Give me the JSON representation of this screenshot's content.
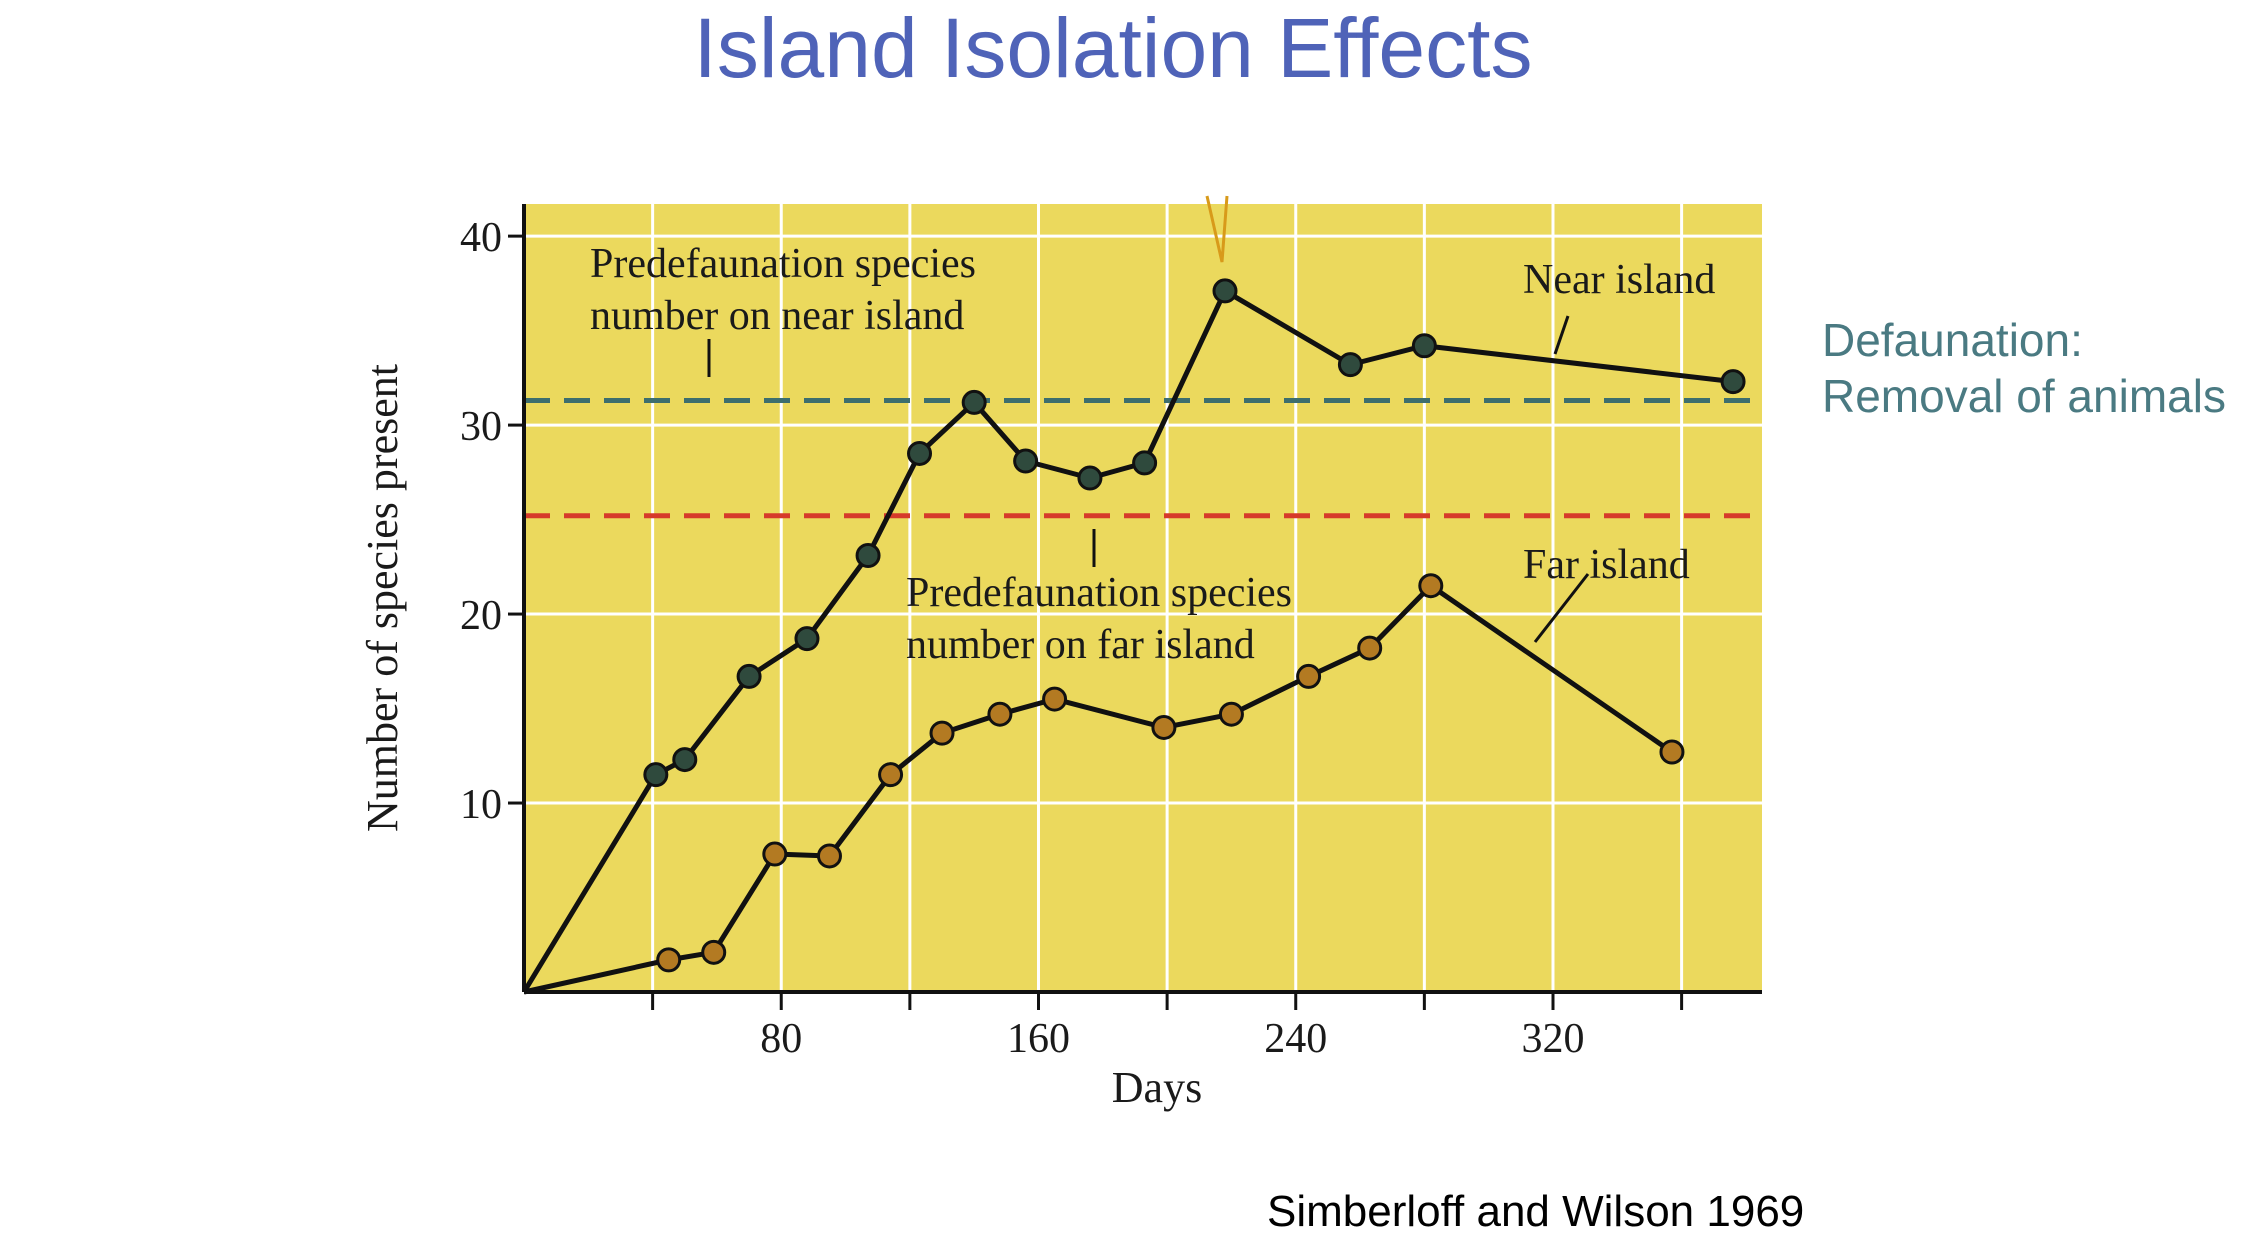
{
  "slide": {
    "title": "Island Isolation Effects",
    "side_note": [
      "Defaunation:",
      "Removal of animals"
    ],
    "citation": "Simberloff and Wilson 1969"
  },
  "colors": {
    "title": "#4f63b8",
    "plot_bg": "#ebd95d",
    "grid": "#ffffff",
    "near_marker": "#2f4a3d",
    "far_marker": "#b37a22",
    "near_threshold": "#3d6e6e",
    "far_threshold": "#d63a2a",
    "line": "#111111",
    "side_note": "#4a7a82",
    "pointer": "#d89a1a"
  },
  "chart_data": {
    "type": "line",
    "title": "",
    "xlabel": "Days",
    "ylabel": "Number of species present",
    "xlim": [
      0,
      385
    ],
    "ylim": [
      0,
      41.7
    ],
    "x_ticks": [
      80,
      160,
      240,
      320
    ],
    "x_minor_ticks": [
      40,
      120,
      200,
      280,
      360
    ],
    "y_ticks": [
      10,
      20,
      30,
      40
    ],
    "grid": true,
    "series": [
      {
        "name": "Near island",
        "x": [
          0,
          41,
          50,
          70,
          88,
          107,
          123,
          140,
          156,
          176,
          193,
          218,
          257,
          280,
          376
        ],
        "y": [
          0,
          11.5,
          12.3,
          16.7,
          18.7,
          23.1,
          28.5,
          31.2,
          28.1,
          27.2,
          28.0,
          37.1,
          33.2,
          34.2,
          32.3
        ]
      },
      {
        "name": "Far island",
        "x": [
          0,
          45,
          59,
          78,
          95,
          114,
          130,
          148,
          165,
          199,
          220,
          244,
          263,
          282,
          357
        ],
        "y": [
          0,
          1.7,
          2.1,
          7.3,
          7.2,
          11.5,
          13.7,
          14.7,
          15.5,
          14.0,
          14.7,
          16.7,
          18.2,
          21.5,
          12.7
        ]
      }
    ],
    "reference_lines": [
      {
        "name": "Predefaunation species number on near island",
        "y": 31.3
      },
      {
        "name": "Predefaunation species number on far island",
        "y": 25.2
      }
    ],
    "annotations": [
      {
        "lines": [
          "Predefaunation species",
          "number on near island"
        ]
      },
      {
        "lines": [
          "Predefaunation species",
          "number on far island"
        ]
      },
      {
        "text": "Near island"
      },
      {
        "text": "Far island"
      }
    ]
  }
}
